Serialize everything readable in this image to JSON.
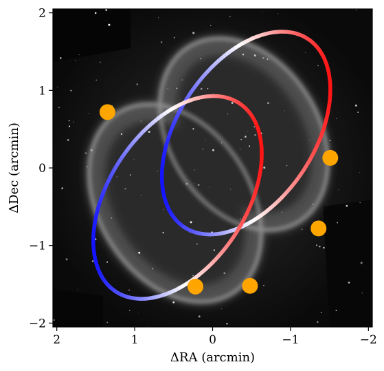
{
  "chart_data": {
    "type": "scatter",
    "background": "grayscale nebula image (inverted grayscale, dark sky)",
    "xlabel": "ΔRA (arcmin)",
    "ylabel": "ΔDec (arcmin)",
    "xlim": [
      2.05,
      -2.05
    ],
    "ylim": [
      -2.05,
      2.05
    ],
    "x_reversed": true,
    "xticks": [
      2,
      1,
      0,
      -1,
      -2
    ],
    "yticks": [
      2,
      1,
      0,
      -1,
      -2
    ],
    "xtick_labels": [
      "2",
      "1",
      "0",
      "−1",
      "−2"
    ],
    "ytick_labels": [
      "2",
      "1",
      "0",
      "−1",
      "−2"
    ],
    "grid": false,
    "colormap": "bwr (blue = approaching, red = receding)",
    "series": [
      {
        "kind": "ellipse",
        "center": [
          -0.43,
          0.45
        ],
        "semi_major": 1.45,
        "semi_minor": 0.88,
        "angle_deg": -57,
        "color_low": "#ff1a1a",
        "color_high": "#1a1aff"
      },
      {
        "kind": "ellipse",
        "center": [
          0.45,
          -0.38
        ],
        "semi_major": 1.45,
        "semi_minor": 0.88,
        "angle_deg": -57,
        "color_low": "#ff1a1a",
        "color_high": "#1a1aff"
      }
    ],
    "markers": {
      "color": "#ffa500",
      "points": [
        {
          "x": 1.35,
          "y": 0.72
        },
        {
          "x": -1.51,
          "y": 0.13
        },
        {
          "x": -1.36,
          "y": -0.78
        },
        {
          "x": 0.22,
          "y": -1.53
        },
        {
          "x": -0.48,
          "y": -1.52
        }
      ]
    }
  }
}
